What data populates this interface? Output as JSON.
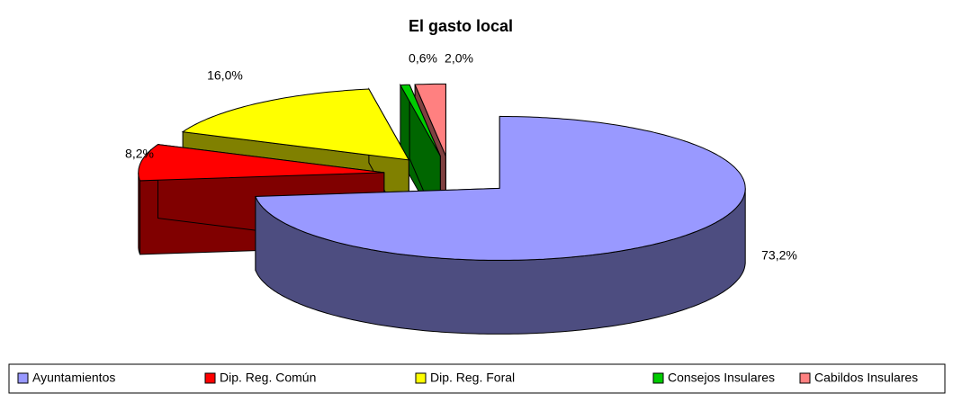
{
  "chart_data": {
    "type": "pie3d",
    "title": "El gasto local",
    "categories": [
      "Ayuntamientos",
      "Dip. Reg. Común",
      "Dip. Reg. Foral",
      "Consejos Insulares",
      "Cabildos Insulares"
    ],
    "values": [
      73.2,
      8.2,
      16.0,
      0.6,
      2.0
    ],
    "value_labels": [
      "73,2%",
      "8,2%",
      "16,0%",
      "0,6%",
      "2,0%"
    ],
    "colors": [
      "#9999ff",
      "#ff0000",
      "#ffff00",
      "#00cc00",
      "#ff8080"
    ],
    "legend": "bottom"
  }
}
